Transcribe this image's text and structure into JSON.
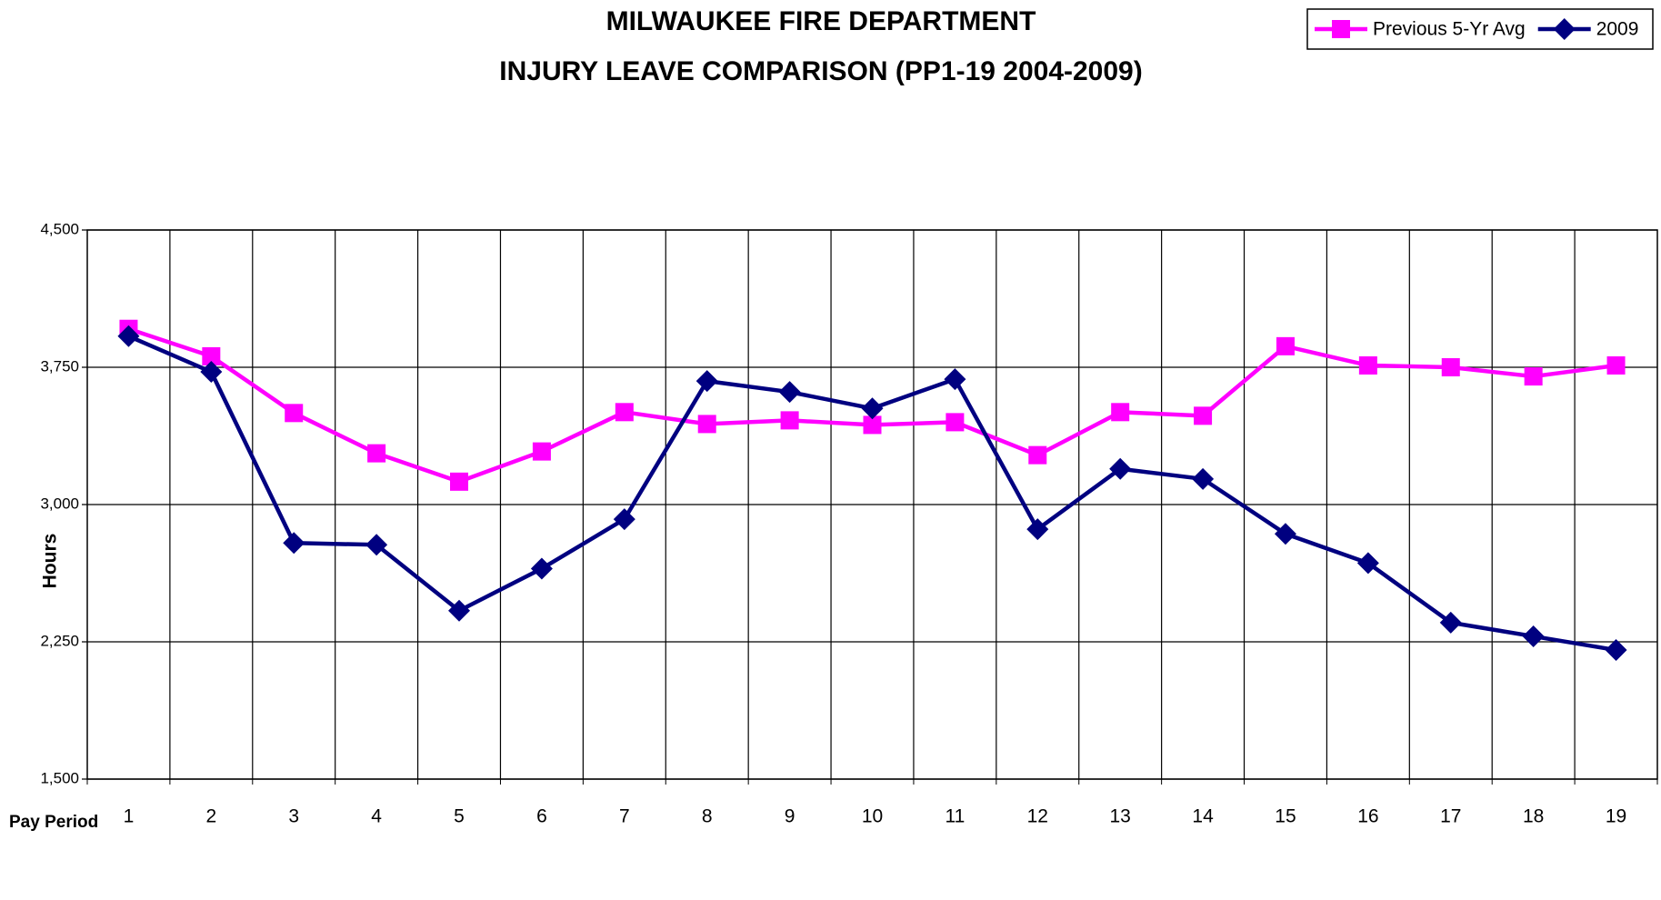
{
  "chart_data": {
    "type": "line",
    "title": "MILWAUKEE FIRE DEPARTMENT",
    "subtitle": "INJURY LEAVE COMPARISON (PP1-19 2004-2009)",
    "x_label": "Pay Period",
    "y_label": "Hours",
    "categories": [
      "1",
      "2",
      "3",
      "4",
      "5",
      "6",
      "7",
      "8",
      "9",
      "10",
      "11",
      "12",
      "13",
      "14",
      "15",
      "16",
      "17",
      "18",
      "19"
    ],
    "series": [
      {
        "name": "Previous 5-Yr Avg",
        "color": "#ff00ff",
        "marker": "square",
        "values": [
          3960,
          3810,
          3500,
          3280,
          3125,
          3290,
          3505,
          3440,
          3460,
          3435,
          3450,
          3270,
          3505,
          3485,
          3865,
          3760,
          3750,
          3700,
          3760
        ]
      },
      {
        "name": "2009",
        "color": "#000080",
        "marker": "diamond",
        "values": [
          3920,
          3725,
          2790,
          2780,
          2420,
          2650,
          2920,
          3675,
          3615,
          3525,
          3685,
          2865,
          3195,
          3140,
          2840,
          2680,
          2355,
          2280,
          2205
        ]
      }
    ],
    "ylim": [
      1500,
      4500
    ],
    "yticks": [
      {
        "value": 1500,
        "label": "1,500"
      },
      {
        "value": 2250,
        "label": "2,250"
      },
      {
        "value": 3000,
        "label": "3,000"
      },
      {
        "value": 3750,
        "label": "3,750"
      },
      {
        "value": 4500,
        "label": "4,500"
      }
    ],
    "grid": true,
    "legend": "top-right"
  }
}
